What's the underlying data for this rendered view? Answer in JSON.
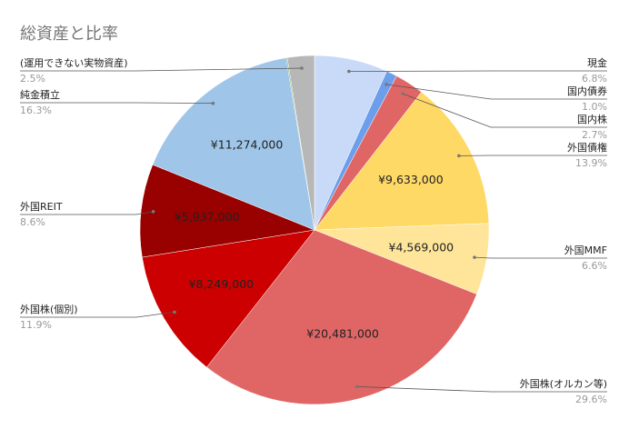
{
  "chart_data": {
    "type": "pie",
    "title": "総資産と比率",
    "categories": [
      "現金",
      "国内債券",
      "国内株",
      "外国債権",
      "外国MMF",
      "外国株(オルカン等)",
      "外国株(個別)",
      "外国REIT",
      "純金積立",
      null,
      "(運用できない実物資産)"
    ],
    "values": [
      6.8,
      1.0,
      2.7,
      13.9,
      6.6,
      29.6,
      11.9,
      8.6,
      16.3,
      0.1,
      2.5
    ],
    "value_labels": [
      "6.8%",
      "1.0%",
      "2.7%",
      "13.9%",
      "6.6%",
      "29.6%",
      "11.9%",
      "8.6%",
      "16.3%",
      null,
      "2.5%"
    ],
    "amounts": [
      null,
      null,
      null,
      "¥9,633,000",
      "¥4,569,000",
      "¥20,481,000",
      "¥8,249,000",
      "¥5,937,000",
      "¥11,274,000",
      null,
      null
    ],
    "colors": [
      "#c9daf8",
      "#6d9eeb",
      "#e06666",
      "#ffd966",
      "#ffe599",
      "#e06666",
      "#cc0000",
      "#990000",
      "#9fc5e8",
      "#6aa84f",
      "#b7b7b7"
    ]
  }
}
